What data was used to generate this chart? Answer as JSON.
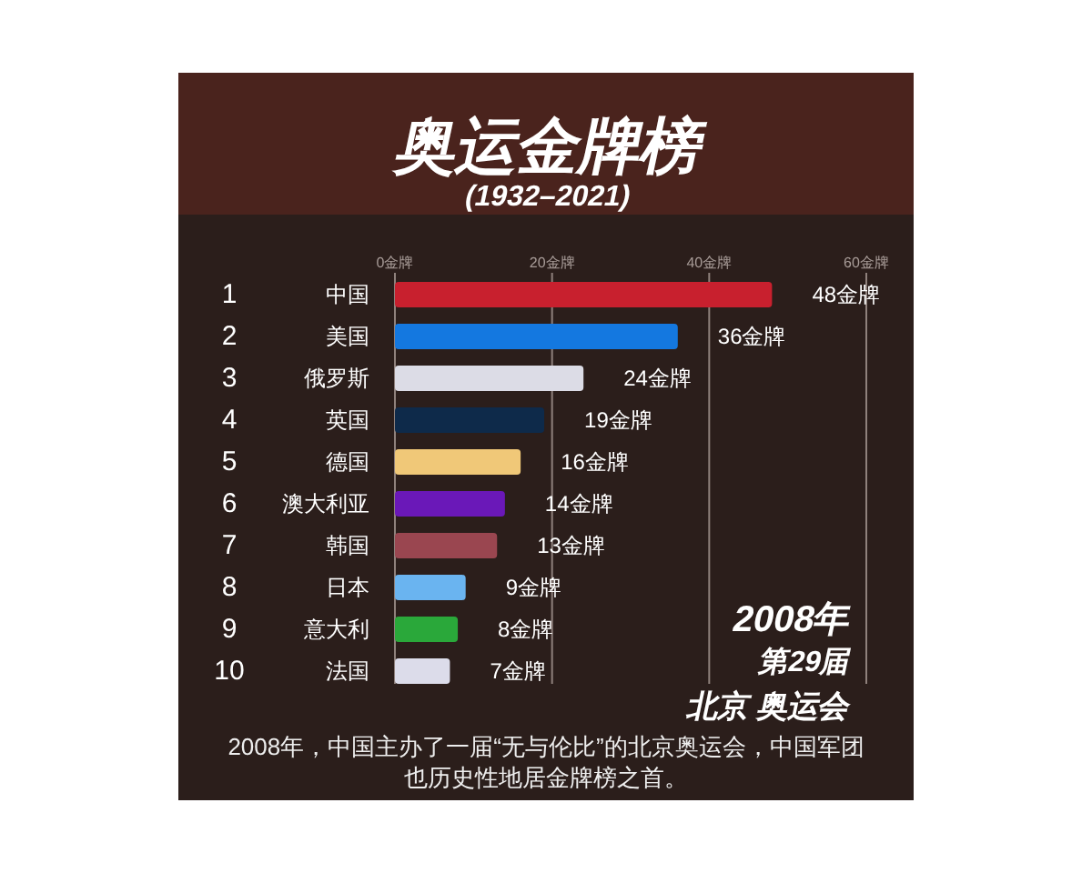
{
  "chart_data": {
    "type": "bar",
    "orientation": "horizontal",
    "title": "奥运金牌榜",
    "subtitle": "(1932–2021)",
    "categories": [
      "中国",
      "美国",
      "俄罗斯",
      "英国",
      "德国",
      "澳大利亚",
      "韩国",
      "日本",
      "意大利",
      "法国"
    ],
    "values": [
      48,
      36,
      24,
      19,
      16,
      14,
      13,
      9,
      8,
      7
    ],
    "colors": [
      "#c8202e",
      "#1478e0",
      "#dcdce6",
      "#0e2a4a",
      "#f0c878",
      "#6a18b8",
      "#9a4650",
      "#6ab4f0",
      "#2aa83a",
      "#dcdcea"
    ],
    "value_labels": [
      "48金牌",
      "36金牌",
      "24金牌",
      "19金牌",
      "16金牌",
      "14金牌",
      "13金牌",
      "9金牌",
      "8金牌",
      "7金牌"
    ],
    "xlim": [
      0,
      60
    ],
    "xticks": [
      {
        "value": 0,
        "label": "0金牌"
      },
      {
        "value": 20,
        "label": "20金牌"
      },
      {
        "value": 40,
        "label": "40金牌"
      },
      {
        "value": 60,
        "label": "60金牌"
      }
    ],
    "grid": "x",
    "annotations": [
      "1",
      "2",
      "3",
      "4",
      "5",
      "6",
      "7",
      "8",
      "9",
      "10",
      "2008年",
      "第29届",
      "北京 奥运会",
      "2008年，中国主办了一届“无与伦比”的北京奥运会，中国军团也历史性地居金牌榜之首。"
    ]
  }
}
